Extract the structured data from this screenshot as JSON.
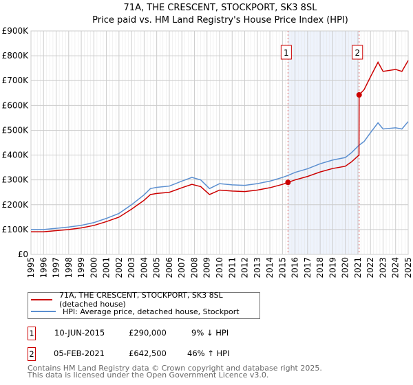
{
  "title": "71A, THE CRESCENT, STOCKPORT, SK3 8SL",
  "subtitle": "Price paid vs. HM Land Registry's House Price Index (HPI)",
  "chart_data": {
    "type": "line",
    "xlim": [
      1995,
      2025
    ],
    "ylim": [
      0,
      900000
    ],
    "x_ticks": [
      "1995",
      "1996",
      "1997",
      "1998",
      "1999",
      "2000",
      "2001",
      "2002",
      "2003",
      "2004",
      "2005",
      "2006",
      "2007",
      "2008",
      "2009",
      "2010",
      "2011",
      "2012",
      "2013",
      "2014",
      "2015",
      "2016",
      "2017",
      "2018",
      "2019",
      "2020",
      "2021",
      "2022",
      "2023",
      "2024",
      "2025"
    ],
    "y_ticks": [
      "£0",
      "£100K",
      "£200K",
      "£300K",
      "£400K",
      "£500K",
      "£600K",
      "£700K",
      "£800K",
      "£900K"
    ],
    "grid": true,
    "colors": {
      "property": "#cc0000",
      "hpi": "#5b8fd0",
      "shade": "#eef3fc"
    },
    "series": [
      {
        "name": "71A, THE CRESCENT, STOCKPORT, SK3 8SL (detached house)",
        "x": [
          1995,
          1996,
          1997,
          1998,
          1999,
          2000,
          2001,
          2002,
          2003,
          2004,
          2004.5,
          2005,
          2006,
          2007,
          2007.8,
          2008.5,
          2009.2,
          2010,
          2011,
          2012,
          2013,
          2014,
          2015,
          2015.44,
          2016,
          2017,
          2018,
          2019,
          2020,
          2020.5,
          2021.09,
          2021.1,
          2021.5,
          2022,
          2022.6,
          2023,
          2024,
          2024.5,
          2025
        ],
        "y": [
          91000,
          91000,
          95500,
          100000,
          106500,
          116500,
          132000,
          150000,
          182000,
          218000,
          241000,
          245500,
          250000,
          268500,
          282000,
          273000,
          241000,
          259000,
          255000,
          253000,
          259000,
          268500,
          282000,
          290000,
          300000,
          314000,
          332000,
          346000,
          355000,
          373000,
          400000,
          642500,
          664000,
          715000,
          774000,
          737000,
          745000,
          737000,
          781000
        ]
      },
      {
        "name": "HPI: Average price, detached house, Stockport",
        "x": [
          1995,
          1996,
          1997,
          1998,
          1999,
          2000,
          2001,
          2002,
          2003,
          2004,
          2004.5,
          2005,
          2006,
          2007,
          2007.8,
          2008.5,
          2009.2,
          2010,
          2011,
          2012,
          2013,
          2014,
          2015,
          2015.44,
          2016,
          2017,
          2018,
          2019,
          2020,
          2020.5,
          2021.1,
          2021.5,
          2022,
          2022.6,
          2023,
          2024,
          2024.5,
          2025
        ],
        "y": [
          100000,
          100000,
          105000,
          110000,
          117000,
          128000,
          145000,
          165000,
          200000,
          240000,
          265000,
          270000,
          275000,
          295000,
          310000,
          300000,
          265000,
          285000,
          280000,
          278000,
          285000,
          295000,
          310000,
          318000,
          330000,
          345000,
          365000,
          380000,
          390000,
          410000,
          440000,
          455000,
          490000,
          530000,
          505000,
          510000,
          505000,
          535000
        ]
      }
    ],
    "sales": [
      {
        "label": "1",
        "x": 2015.44,
        "y": 290000
      },
      {
        "label": "2",
        "x": 2021.1,
        "y": 642500
      }
    ]
  },
  "legend": {
    "property": "71A, THE CRESCENT, STOCKPORT, SK3 8SL (detached house)",
    "hpi": "HPI: Average price, detached house, Stockport"
  },
  "transactions": [
    {
      "num": "1",
      "date": "10-JUN-2015",
      "price": "£290,000",
      "hpi": "9% ↓ HPI"
    },
    {
      "num": "2",
      "date": "05-FEB-2021",
      "price": "£642,500",
      "hpi": "46% ↑ HPI"
    }
  ],
  "footer": {
    "line1": "Contains HM Land Registry data © Crown copyright and database right 2025.",
    "line2": "This data is licensed under the Open Government Licence v3.0."
  }
}
